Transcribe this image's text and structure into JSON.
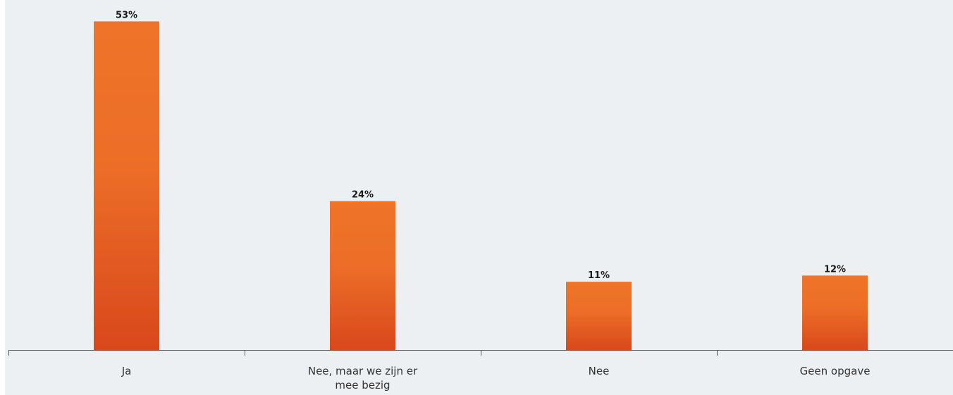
{
  "chart_data": {
    "type": "bar",
    "title": "",
    "xlabel": "",
    "ylabel": "",
    "unit": "%",
    "categories": [
      [
        "Ja"
      ],
      [
        "Nee, maar we zijn er",
        "mee bezig"
      ],
      [
        "Nee"
      ],
      [
        "Geen opgave"
      ]
    ],
    "values": [
      53,
      24,
      11,
      12
    ],
    "value_labels": [
      "53%",
      "24%",
      "11%",
      "12%"
    ],
    "ylim": [
      0,
      56
    ],
    "grid": false,
    "legend": "none"
  },
  "colors": {
    "background": "#ecf0f3",
    "bar_top": "#ef7429",
    "bar_bottom": "#d9481c",
    "axis": "#555555",
    "label": "#1a1a1a"
  }
}
